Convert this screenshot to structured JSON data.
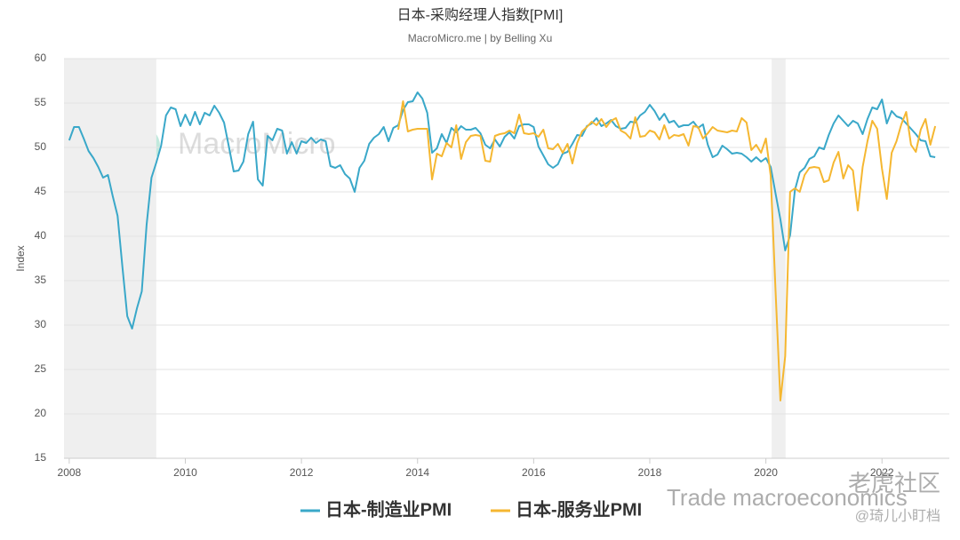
{
  "chart_data": {
    "type": "line",
    "title": "日本-采购经理人指数[PMI]",
    "subtitle": "MacroMicro.me | by Belling Xu",
    "y_label": "Index",
    "watermarks": [
      "MacroMicro",
      "Trade macroeconomics",
      "老虎社区",
      "@琦儿小盯档"
    ],
    "x": [
      2008,
      2008.083,
      2008.167,
      2008.25,
      2008.333,
      2008.417,
      2008.5,
      2008.583,
      2008.667,
      2008.75,
      2008.833,
      2008.917,
      2009,
      2009.083,
      2009.167,
      2009.25,
      2009.333,
      2009.417,
      2009.5,
      2009.583,
      2009.667,
      2009.75,
      2009.833,
      2009.917,
      2010,
      2010.083,
      2010.167,
      2010.25,
      2010.333,
      2010.417,
      2010.5,
      2010.583,
      2010.667,
      2010.75,
      2010.833,
      2010.917,
      2011,
      2011.083,
      2011.167,
      2011.25,
      2011.333,
      2011.417,
      2011.5,
      2011.583,
      2011.667,
      2011.75,
      2011.833,
      2011.917,
      2012,
      2012.083,
      2012.167,
      2012.25,
      2012.333,
      2012.417,
      2012.5,
      2012.583,
      2012.667,
      2012.75,
      2012.833,
      2012.917,
      2013,
      2013.083,
      2013.167,
      2013.25,
      2013.333,
      2013.417,
      2013.5,
      2013.583,
      2013.667,
      2013.75,
      2013.833,
      2013.917,
      2014,
      2014.083,
      2014.167,
      2014.25,
      2014.333,
      2014.417,
      2014.5,
      2014.583,
      2014.667,
      2014.75,
      2014.833,
      2014.917,
      2015,
      2015.083,
      2015.167,
      2015.25,
      2015.333,
      2015.417,
      2015.5,
      2015.583,
      2015.667,
      2015.75,
      2015.833,
      2015.917,
      2016,
      2016.083,
      2016.167,
      2016.25,
      2016.333,
      2016.417,
      2016.5,
      2016.583,
      2016.667,
      2016.75,
      2016.833,
      2016.917,
      2017,
      2017.083,
      2017.167,
      2017.25,
      2017.333,
      2017.417,
      2017.5,
      2017.583,
      2017.667,
      2017.75,
      2017.833,
      2017.917,
      2018,
      2018.083,
      2018.167,
      2018.25,
      2018.333,
      2018.417,
      2018.5,
      2018.583,
      2018.667,
      2018.75,
      2018.833,
      2018.917,
      2019,
      2019.083,
      2019.167,
      2019.25,
      2019.333,
      2019.417,
      2019.5,
      2019.583,
      2019.667,
      2019.75,
      2019.833,
      2019.917,
      2020,
      2020.083,
      2020.167,
      2020.25,
      2020.333,
      2020.417,
      2020.5,
      2020.583,
      2020.667,
      2020.75,
      2020.833,
      2020.917,
      2021,
      2021.083,
      2021.167,
      2021.25,
      2021.333,
      2021.417,
      2021.5,
      2021.583,
      2021.667,
      2021.75,
      2021.833,
      2021.917,
      2022,
      2022.083,
      2022.167,
      2022.25,
      2022.333,
      2022.417,
      2022.5,
      2022.583,
      2022.667,
      2022.75,
      2022.833,
      2022.917
    ],
    "series": [
      {
        "name": "日本-制造业PMI",
        "color": "#3aa8c9",
        "values": [
          50.8,
          52.3,
          52.3,
          51.0,
          49.6,
          48.8,
          47.8,
          46.6,
          46.9,
          44.5,
          42.3,
          36.5,
          31.0,
          29.6,
          31.9,
          33.8,
          41.3,
          46.6,
          48.3,
          50.2,
          53.6,
          54.5,
          54.3,
          52.4,
          53.7,
          52.5,
          54.0,
          52.6,
          53.9,
          53.6,
          54.7,
          53.9,
          52.8,
          50.1,
          47.3,
          47.4,
          48.4,
          51.5,
          52.9,
          46.4,
          45.7,
          51.3,
          50.8,
          52.1,
          51.9,
          49.3,
          50.6,
          49.3,
          50.7,
          50.5,
          51.1,
          50.5,
          50.9,
          50.7,
          47.9,
          47.7,
          48.0,
          47.0,
          46.5,
          45.0,
          47.7,
          48.5,
          50.4,
          51.1,
          51.5,
          52.3,
          50.7,
          52.2,
          52.5,
          54.2,
          55.1,
          55.2,
          56.2,
          55.5,
          53.9,
          49.4,
          49.9,
          51.5,
          50.5,
          52.2,
          51.7,
          52.4,
          52.0,
          52.0,
          52.2,
          51.6,
          50.3,
          49.9,
          50.9,
          50.1,
          51.2,
          51.7,
          51.0,
          52.4,
          52.6,
          52.6,
          52.3,
          50.1,
          49.1,
          48.1,
          47.7,
          48.1,
          49.3,
          49.5,
          50.4,
          51.4,
          51.3,
          52.4,
          52.7,
          53.3,
          52.4,
          52.7,
          53.1,
          52.4,
          52.1,
          52.2,
          52.9,
          52.8,
          53.6,
          54.0,
          54.8,
          54.1,
          53.1,
          53.8,
          52.8,
          53.0,
          52.3,
          52.5,
          52.5,
          52.9,
          52.2,
          52.6,
          50.3,
          48.9,
          49.2,
          50.2,
          49.8,
          49.3,
          49.4,
          49.3,
          48.9,
          48.4,
          48.9,
          48.4,
          48.8,
          47.8,
          44.8,
          41.9,
          38.4,
          40.1,
          45.2,
          47.2,
          47.7,
          48.7,
          49.0,
          50.0,
          49.8,
          51.4,
          52.7,
          53.6,
          53.0,
          52.4,
          53.0,
          52.7,
          51.5,
          53.2,
          54.5,
          54.3,
          55.4,
          52.7,
          54.1,
          53.5,
          53.3,
          52.7,
          52.1,
          51.5,
          50.8,
          50.7,
          49.0,
          48.9
        ]
      },
      {
        "name": "日本-服务业PMI",
        "color": "#f5b731",
        "values": [
          null,
          null,
          null,
          null,
          null,
          null,
          null,
          null,
          null,
          null,
          null,
          null,
          null,
          null,
          null,
          null,
          null,
          null,
          null,
          null,
          null,
          null,
          null,
          null,
          null,
          null,
          null,
          null,
          null,
          null,
          null,
          null,
          null,
          null,
          null,
          null,
          null,
          null,
          null,
          null,
          null,
          null,
          null,
          null,
          null,
          null,
          null,
          null,
          null,
          null,
          null,
          null,
          null,
          null,
          null,
          null,
          null,
          null,
          null,
          null,
          null,
          null,
          null,
          null,
          null,
          null,
          null,
          null,
          52.0,
          55.2,
          51.8,
          52.0,
          52.1,
          52.1,
          52.1,
          46.4,
          49.3,
          49.0,
          50.5,
          50.0,
          52.5,
          48.7,
          50.6,
          51.3,
          51.4,
          51.3,
          48.5,
          48.4,
          51.3,
          51.5,
          51.6,
          51.9,
          51.6,
          53.7,
          51.6,
          51.5,
          51.6,
          51.2,
          52.0,
          49.9,
          49.8,
          50.4,
          49.4,
          50.4,
          48.2,
          50.5,
          51.8,
          52.3,
          52.9,
          52.5,
          53.2,
          52.3,
          53.0,
          53.3,
          51.9,
          51.6,
          51.0,
          53.4,
          51.2,
          51.3,
          51.9,
          51.7,
          50.9,
          52.5,
          51.0,
          51.4,
          51.3,
          51.5,
          50.2,
          52.4,
          52.3,
          51.0,
          51.6,
          52.3,
          51.9,
          51.8,
          51.7,
          51.9,
          51.8,
          53.3,
          52.8,
          49.7,
          50.3,
          49.4,
          51.0,
          46.8,
          33.8,
          21.5,
          26.5,
          45.0,
          45.4,
          45.0,
          46.9,
          47.7,
          47.8,
          47.7,
          46.1,
          46.3,
          48.3,
          49.5,
          46.5,
          48.0,
          47.4,
          42.9,
          47.8,
          50.7,
          53.0,
          52.1,
          47.6,
          44.2,
          49.4,
          50.7,
          52.6,
          54.0,
          50.3,
          49.5,
          52.0,
          53.2,
          50.3,
          52.4
        ]
      }
    ],
    "xlim": [
      2007.91,
      2023.16
    ],
    "xticks": [
      2008,
      2010,
      2012,
      2014,
      2016,
      2018,
      2020,
      2022
    ],
    "ylim": [
      15,
      60
    ],
    "yticks": [
      15,
      20,
      25,
      30,
      35,
      40,
      45,
      50,
      55,
      60
    ],
    "grid": true,
    "shaded_regions": [
      [
        2007.91,
        2009.5
      ],
      [
        2020.1,
        2020.34
      ]
    ],
    "shade_color": "#efefef",
    "legend": "bottom"
  }
}
